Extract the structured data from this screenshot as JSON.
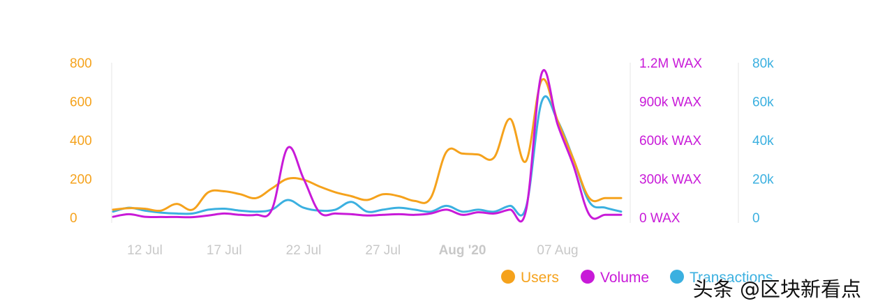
{
  "chart_data": {
    "type": "line",
    "title": "",
    "x": [
      "10 Jul",
      "11 Jul",
      "12 Jul",
      "13 Jul",
      "14 Jul",
      "15 Jul",
      "16 Jul",
      "17 Jul",
      "18 Jul",
      "19 Jul",
      "20 Jul",
      "21 Jul",
      "22 Jul",
      "23 Jul",
      "24 Jul",
      "25 Jul",
      "26 Jul",
      "27 Jul",
      "28 Jul",
      "29 Jul",
      "30 Jul",
      "31 Jul",
      "01 Aug",
      "02 Aug",
      "03 Aug",
      "04 Aug",
      "05 Aug",
      "06 Aug",
      "07 Aug",
      "08 Aug",
      "09 Aug",
      "10 Aug",
      "11 Aug"
    ],
    "x_tick_labels": [
      "12 Jul",
      "17 Jul",
      "22 Jul",
      "27 Jul",
      "Aug '20",
      "07 Aug"
    ],
    "x_tick_indices": [
      2,
      7,
      12,
      17,
      22,
      28
    ],
    "axes": {
      "users": {
        "ylim": [
          0,
          800
        ],
        "ticks": [
          "0",
          "200",
          "400",
          "600",
          "800"
        ],
        "color": "#f5a21c"
      },
      "volume": {
        "ylim": [
          0,
          1200000
        ],
        "ticks": [
          "0 WAX",
          "300k WAX",
          "600k WAX",
          "900k WAX",
          "1.2M WAX"
        ],
        "color": "#c81ad8"
      },
      "transactions": {
        "ylim": [
          0,
          80000
        ],
        "ticks": [
          "0",
          "20k",
          "40k",
          "60k",
          "80k"
        ],
        "color": "#3bb0e0"
      }
    },
    "series": [
      {
        "name": "Users",
        "axis": "users",
        "color": "#f5a21c",
        "values": [
          40,
          48,
          45,
          35,
          70,
          40,
          130,
          135,
          120,
          100,
          150,
          200,
          195,
          160,
          130,
          110,
          90,
          120,
          110,
          85,
          100,
          340,
          330,
          325,
          310,
          510,
          290,
          710,
          500,
          300,
          100,
          100,
          100
        ]
      },
      {
        "name": "Volume",
        "axis": "volume",
        "color": "#c81ad8",
        "values": [
          5000,
          25000,
          5000,
          3000,
          3000,
          2000,
          15000,
          30000,
          20000,
          20000,
          60000,
          540000,
          300000,
          40000,
          30000,
          25000,
          15000,
          20000,
          25000,
          20000,
          30000,
          60000,
          20000,
          40000,
          30000,
          60000,
          50000,
          1120000,
          720000,
          400000,
          20000,
          20000,
          20000
        ]
      },
      {
        "name": "Transactions",
        "axis": "transactions",
        "color": "#3bb0e0",
        "values": [
          3000,
          5000,
          3500,
          2500,
          2000,
          2000,
          4000,
          4500,
          3500,
          3000,
          4000,
          9000,
          5000,
          3500,
          4000,
          8000,
          3000,
          4000,
          5000,
          4000,
          3000,
          6000,
          3000,
          4000,
          3000,
          6000,
          5000,
          60000,
          50000,
          30000,
          8000,
          5000,
          3000
        ]
      }
    ],
    "legend": {
      "placement": "bottom-right"
    },
    "grid": false
  },
  "legend": {
    "users": "Users",
    "volume": "Volume",
    "transactions": "Transactions"
  },
  "watermark": "头条 @区块新看点"
}
